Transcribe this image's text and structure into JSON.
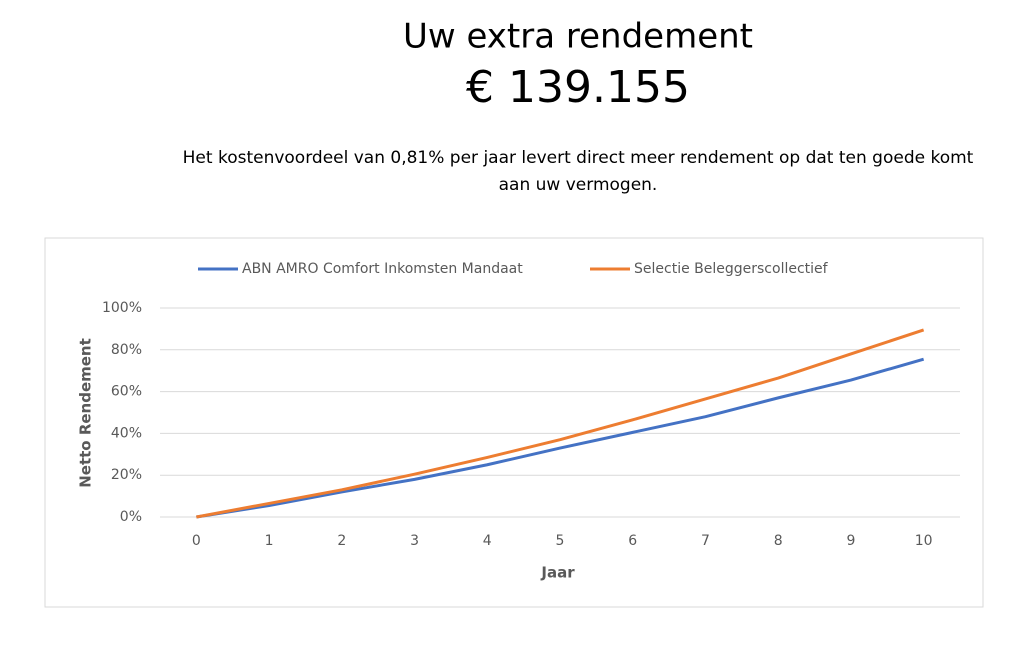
{
  "header": {
    "title": "Uw extra rendement",
    "amount": "€ 139.155",
    "description": [
      "Het kostenvoordeel van 0,81% per jaar levert direct meer rendement op dat ten goede komt",
      "aan uw vermogen."
    ]
  },
  "chart_data": {
    "type": "line",
    "x_label": "Jaar",
    "y_label": "Netto Rendement",
    "x": [
      0,
      1,
      2,
      3,
      4,
      5,
      6,
      7,
      8,
      9,
      10
    ],
    "xlim": [
      -0.5,
      10.5
    ],
    "xticks": [
      0,
      1,
      2,
      3,
      4,
      5,
      6,
      7,
      8,
      9,
      10
    ],
    "ylim": [
      0,
      100
    ],
    "yticks": [
      {
        "value": 0,
        "label": "0%"
      },
      {
        "value": 20,
        "label": "20%"
      },
      {
        "value": 40,
        "label": "40%"
      },
      {
        "value": 60,
        "label": "60%"
      },
      {
        "value": 80,
        "label": "80%"
      },
      {
        "value": 100,
        "label": "100%"
      }
    ],
    "grid": true,
    "legend": "top",
    "series": [
      {
        "name": "ABN AMRO Comfort Inkomsten Mandaat",
        "color": "#4472c4",
        "values": [
          0,
          5.5,
          12,
          18,
          25,
          33,
          40.5,
          48,
          57,
          65.5,
          75.5
        ]
      },
      {
        "name": "Selectie Beleggerscollectief",
        "color": "#ed7d31",
        "values": [
          0,
          6.5,
          13,
          20.5,
          28.5,
          37,
          46.5,
          56.5,
          66.5,
          78,
          89.5
        ]
      }
    ]
  }
}
